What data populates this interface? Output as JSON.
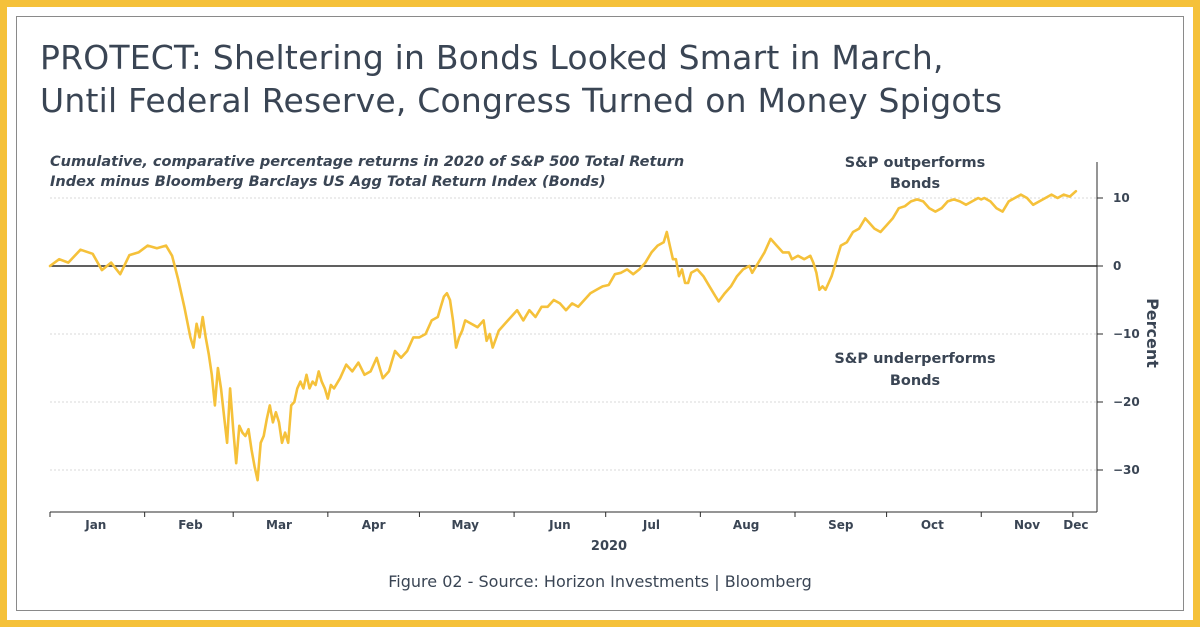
{
  "title_lines": [
    "PROTECT: Sheltering in Bonds Looked Smart in March,",
    "Until Federal Reserve, Congress Turned on Money Spigots"
  ],
  "subtitle_lines": [
    "Cumulative, comparative percentage returns in 2020 of S&P 500 Total Return",
    "Index minus Bloomberg Barclays US Agg Total Return Index (Bonds)"
  ],
  "annotations": {
    "outperforms": [
      "S&P outperforms",
      "Bonds"
    ],
    "underperforms": [
      "S&P underperforms",
      "Bonds"
    ]
  },
  "caption": "Figure 02 - Source: Horizon Investments | Bloomberg",
  "colors": {
    "border": "#f5c13a",
    "line": "#f5c13a",
    "text": "#3a4554",
    "zero_line": "#2b2b2b",
    "grid": "#d9d9d9"
  },
  "chart_data": {
    "type": "line",
    "title": "",
    "xlabel": "2020",
    "ylabel": "Percent",
    "ylim": [
      -36,
      15
    ],
    "yticks": [
      10,
      0,
      -10,
      -20,
      -30
    ],
    "y_axis_position": "right",
    "grid": true,
    "zero_line": true,
    "x_range": [
      0,
      338
    ],
    "month_labels": [
      {
        "label": "Jan",
        "x": 15
      },
      {
        "label": "Feb",
        "x": 46
      },
      {
        "label": "Mar",
        "x": 75
      },
      {
        "label": "Apr",
        "x": 106
      },
      {
        "label": "May",
        "x": 136
      },
      {
        "label": "Jun",
        "x": 167
      },
      {
        "label": "Jul",
        "x": 197
      },
      {
        "label": "Aug",
        "x": 228
      },
      {
        "label": "Sep",
        "x": 259
      },
      {
        "label": "Oct",
        "x": 289
      },
      {
        "label": "Nov",
        "x": 320
      },
      {
        "label": "Dec",
        "x": 336
      }
    ],
    "month_boundaries": [
      0,
      31,
      60,
      91,
      121,
      152,
      182,
      213,
      244,
      274,
      305,
      335
    ],
    "series": [
      {
        "name": "",
        "points": [
          [
            0,
            0
          ],
          [
            3,
            1
          ],
          [
            6,
            0.5
          ],
          [
            10,
            2.4
          ],
          [
            14,
            1.8
          ],
          [
            17,
            -0.6
          ],
          [
            20,
            0.5
          ],
          [
            23,
            -1.2
          ],
          [
            26,
            1.6
          ],
          [
            29,
            2
          ],
          [
            32,
            3
          ],
          [
            35,
            2.6
          ],
          [
            38,
            3
          ],
          [
            40,
            1.5
          ],
          [
            42,
            -2
          ],
          [
            44,
            -6
          ],
          [
            46,
            -10.5
          ],
          [
            47,
            -12
          ],
          [
            48,
            -8.5
          ],
          [
            49,
            -10.5
          ],
          [
            50,
            -7.5
          ],
          [
            51,
            -10.5
          ],
          [
            52,
            -13
          ],
          [
            53,
            -16
          ],
          [
            54,
            -20.5
          ],
          [
            55,
            -15
          ],
          [
            56,
            -18
          ],
          [
            57,
            -22
          ],
          [
            58,
            -26
          ],
          [
            59,
            -18
          ],
          [
            60,
            -24
          ],
          [
            61,
            -29
          ],
          [
            62,
            -23.5
          ],
          [
            63,
            -24.5
          ],
          [
            64,
            -25
          ],
          [
            65,
            -24
          ],
          [
            66,
            -27
          ],
          [
            67,
            -29.5
          ],
          [
            68,
            -31.5
          ],
          [
            69,
            -26
          ],
          [
            70,
            -25
          ],
          [
            71,
            -22.5
          ],
          [
            72,
            -20.5
          ],
          [
            73,
            -23
          ],
          [
            74,
            -21.5
          ],
          [
            75,
            -23
          ],
          [
            76,
            -26
          ],
          [
            77,
            -24.5
          ],
          [
            78,
            -26
          ],
          [
            79,
            -20.5
          ],
          [
            80,
            -20
          ],
          [
            81,
            -18
          ],
          [
            82,
            -17
          ],
          [
            83,
            -18
          ],
          [
            84,
            -16
          ],
          [
            85,
            -18
          ],
          [
            86,
            -17
          ],
          [
            87,
            -17.5
          ],
          [
            88,
            -15.5
          ],
          [
            89,
            -17
          ],
          [
            90,
            -18
          ],
          [
            91,
            -19.5
          ],
          [
            92,
            -17.5
          ],
          [
            93,
            -18
          ],
          [
            95,
            -16.5
          ],
          [
            97,
            -14.5
          ],
          [
            99,
            -15.5
          ],
          [
            101,
            -14.2
          ],
          [
            103,
            -16
          ],
          [
            105,
            -15.5
          ],
          [
            107,
            -13.5
          ],
          [
            109,
            -16.5
          ],
          [
            111,
            -15.5
          ],
          [
            113,
            -12.5
          ],
          [
            115,
            -13.5
          ],
          [
            117,
            -12.5
          ],
          [
            119,
            -10.5
          ],
          [
            121,
            -10.5
          ],
          [
            123,
            -10
          ],
          [
            125,
            -8
          ],
          [
            127,
            -7.5
          ],
          [
            128,
            -6
          ],
          [
            129,
            -4.5
          ],
          [
            130,
            -4
          ],
          [
            131,
            -5
          ],
          [
            132,
            -8
          ],
          [
            133,
            -12
          ],
          [
            134,
            -10.5
          ],
          [
            135,
            -9.5
          ],
          [
            136,
            -8
          ],
          [
            138,
            -8.5
          ],
          [
            140,
            -9
          ],
          [
            142,
            -8
          ],
          [
            143,
            -11
          ],
          [
            144,
            -10
          ],
          [
            145,
            -12
          ],
          [
            147,
            -9.5
          ],
          [
            149,
            -8.5
          ],
          [
            151,
            -7.5
          ],
          [
            153,
            -6.5
          ],
          [
            155,
            -8
          ],
          [
            157,
            -6.5
          ],
          [
            159,
            -7.5
          ],
          [
            161,
            -6
          ],
          [
            163,
            -6
          ],
          [
            165,
            -5
          ],
          [
            167,
            -5.5
          ],
          [
            169,
            -6.5
          ],
          [
            171,
            -5.5
          ],
          [
            173,
            -6
          ],
          [
            175,
            -5
          ],
          [
            177,
            -4
          ],
          [
            179,
            -3.5
          ],
          [
            181,
            -3
          ],
          [
            183,
            -2.8
          ],
          [
            185,
            -1.2
          ],
          [
            187,
            -1
          ],
          [
            189,
            -0.5
          ],
          [
            191,
            -1.2
          ],
          [
            193,
            -0.5
          ],
          [
            195,
            0.5
          ],
          [
            197,
            2
          ],
          [
            199,
            3
          ],
          [
            201,
            3.5
          ],
          [
            202,
            5
          ],
          [
            203,
            3
          ],
          [
            204,
            1
          ],
          [
            205,
            1
          ],
          [
            206,
            -1.5
          ],
          [
            207,
            -0.5
          ],
          [
            208,
            -2.5
          ],
          [
            209,
            -2.5
          ],
          [
            210,
            -1
          ],
          [
            212,
            -0.5
          ],
          [
            214,
            -1.5
          ],
          [
            216,
            -3
          ],
          [
            218,
            -4.5
          ],
          [
            219,
            -5.2
          ],
          [
            221,
            -4
          ],
          [
            223,
            -3
          ],
          [
            225,
            -1.5
          ],
          [
            227,
            -0.5
          ],
          [
            229,
            0
          ],
          [
            230,
            -1
          ],
          [
            232,
            0.5
          ],
          [
            234,
            2
          ],
          [
            236,
            4
          ],
          [
            238,
            3
          ],
          [
            240,
            2
          ],
          [
            242,
            2
          ],
          [
            243,
            1
          ],
          [
            245,
            1.5
          ],
          [
            247,
            1
          ],
          [
            249,
            1.5
          ],
          [
            250,
            0.5
          ],
          [
            251,
            -1
          ],
          [
            252,
            -3.5
          ],
          [
            253,
            -3
          ],
          [
            254,
            -3.5
          ],
          [
            255,
            -2.5
          ],
          [
            256,
            -1.5
          ],
          [
            257,
            0
          ],
          [
            258,
            1.5
          ],
          [
            259,
            3
          ],
          [
            261,
            3.5
          ],
          [
            263,
            5
          ],
          [
            265,
            5.5
          ],
          [
            267,
            7
          ],
          [
            268,
            6.5
          ],
          [
            270,
            5.5
          ],
          [
            272,
            5
          ],
          [
            274,
            6
          ],
          [
            276,
            7
          ],
          [
            278,
            8.5
          ],
          [
            280,
            8.8
          ],
          [
            282,
            9.5
          ],
          [
            284,
            9.8
          ],
          [
            286,
            9.5
          ],
          [
            288,
            8.5
          ],
          [
            290,
            8
          ],
          [
            292,
            8.5
          ],
          [
            294,
            9.5
          ],
          [
            296,
            9.8
          ],
          [
            298,
            9.5
          ],
          [
            300,
            9
          ],
          [
            302,
            9.5
          ],
          [
            304,
            10
          ],
          [
            305,
            9.8
          ],
          [
            306,
            10
          ],
          [
            308,
            9.5
          ],
          [
            310,
            8.5
          ],
          [
            312,
            8
          ],
          [
            314,
            9.5
          ],
          [
            316,
            10
          ],
          [
            318,
            10.5
          ],
          [
            320,
            10
          ],
          [
            322,
            9
          ],
          [
            324,
            9.5
          ],
          [
            326,
            10
          ],
          [
            328,
            10.5
          ],
          [
            330,
            10
          ],
          [
            332,
            10.5
          ],
          [
            334,
            10.2
          ],
          [
            336,
            11
          ]
        ]
      }
    ]
  }
}
